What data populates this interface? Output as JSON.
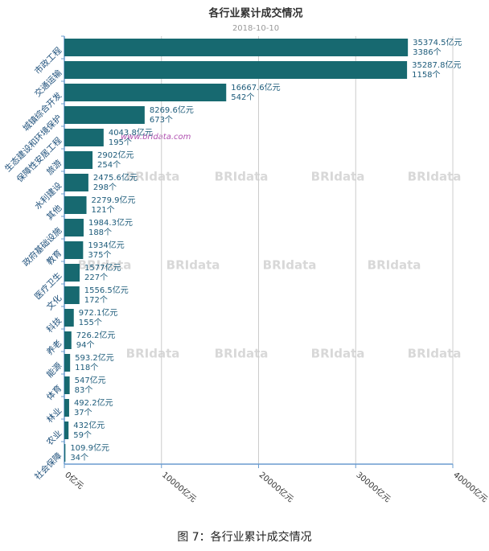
{
  "chart_data": {
    "type": "hbar",
    "title": "各行业累计成交情况",
    "subtitle": "2018-10-10",
    "categories": [
      "市政工程",
      "交通运输",
      "城镇综合开发",
      "生态建设和环境保护",
      "保障性安居工程",
      "旅游",
      "水利建设",
      "其他",
      "政府基础设施",
      "教育",
      "医疗卫生",
      "文化",
      "科技",
      "养老",
      "能源",
      "体育",
      "林业",
      "农业",
      "社会保障"
    ],
    "values": [
      35374.5,
      35287.8,
      16667.6,
      8269.6,
      4043.8,
      2902,
      2475.6,
      2279.9,
      1984.3,
      1934,
      1577,
      1556.5,
      972.1,
      726.2,
      593.2,
      547,
      492.2,
      432,
      109.9
    ],
    "value_labels": [
      "35374.5亿元",
      "35287.8亿元",
      "16667.6亿元",
      "8269.6亿元",
      "4043.8亿元",
      "2902亿元",
      "2475.6亿元",
      "2279.9亿元",
      "1984.3亿元",
      "1934亿元",
      "1577亿元",
      "1556.5亿元",
      "972.1亿元",
      "726.2亿元",
      "593.2亿元",
      "547亿元",
      "492.2亿元",
      "432亿元",
      "109.9亿元"
    ],
    "count_labels": [
      "3386个",
      "1158个",
      "542个",
      "673个",
      "195个",
      "254个",
      "298个",
      "121个",
      "188个",
      "375个",
      "227个",
      "172个",
      "155个",
      "94个",
      "118个",
      "83个",
      "37个",
      "59个",
      "34个"
    ],
    "color": "#176970",
    "xlim": [
      0,
      40000
    ],
    "xticks": [
      {
        "value": 0,
        "label": "0亿元"
      },
      {
        "value": 10000,
        "label": "10000亿元"
      },
      {
        "value": 20000,
        "label": "20000亿元"
      },
      {
        "value": 30000,
        "label": "30000亿元"
      },
      {
        "value": 40000,
        "label": "40000亿元"
      }
    ],
    "watermark": "BRIdata",
    "watermark_url": "www.bridata.com",
    "caption": "图 7：各行业累计成交情况"
  }
}
